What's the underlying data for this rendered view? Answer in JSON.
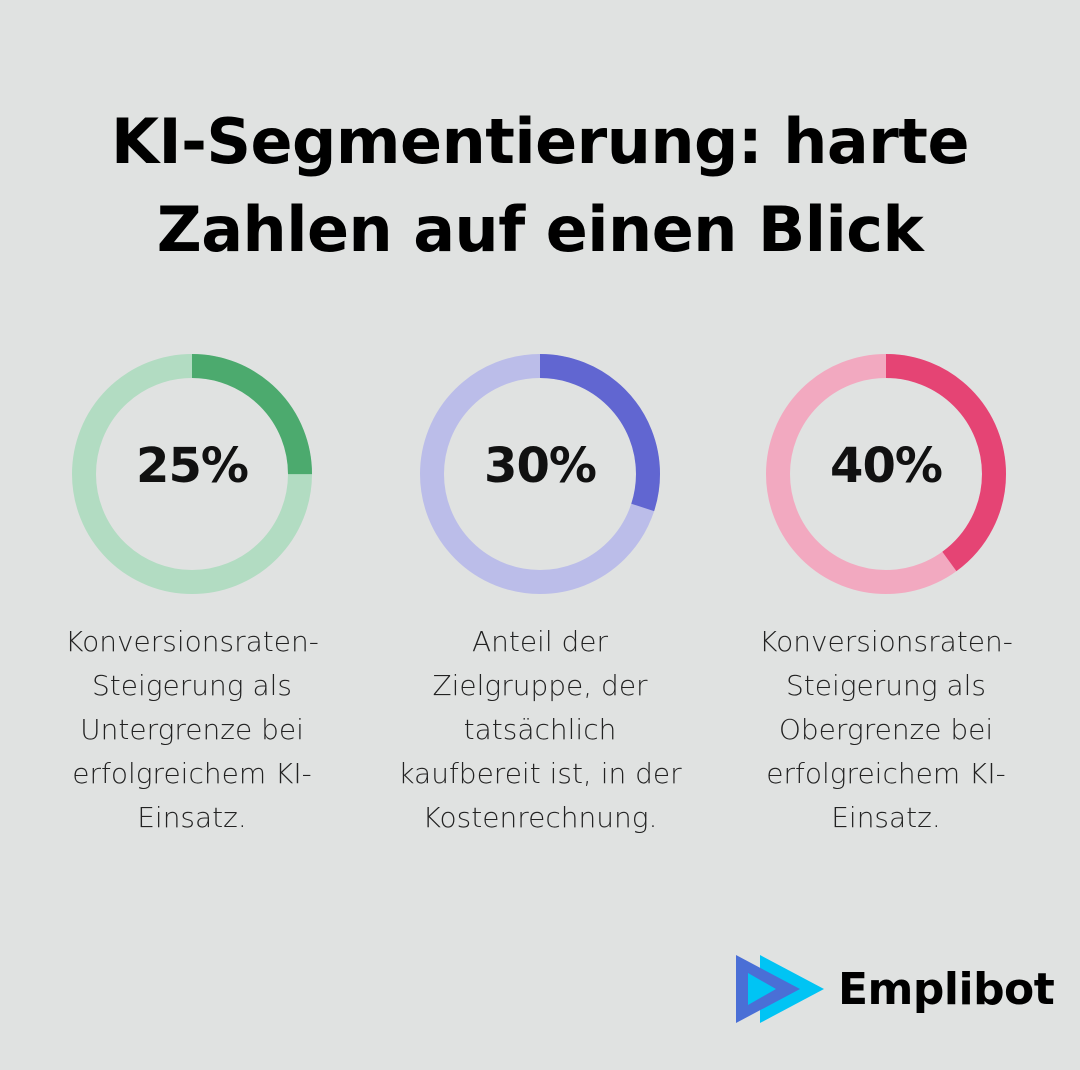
{
  "title_line1": "KI-Segmentierung: harte",
  "title_line2": "Zahlen auf einen Blick",
  "chart_data": [
    {
      "type": "pie",
      "variant": "donut",
      "value": 25,
      "label": "25%",
      "description": "Konversionsraten-Steigerung als Untergrenze bei erfolgreichem KI-Einsatz.",
      "color": "#4caa6e",
      "track_color": "#b2dcc2"
    },
    {
      "type": "pie",
      "variant": "donut",
      "value": 30,
      "label": "30%",
      "description": "Anteil der Zielgruppe, der tatsächlich kaufbereit ist, in der Kostenrechnung.",
      "color": "#6166d1",
      "track_color": "#bbbde9"
    },
    {
      "type": "pie",
      "variant": "donut",
      "value": 40,
      "label": "40%",
      "description": "Konversionsraten-Steigerung als Obergrenze bei erfolgreichem KI-Einsatz.",
      "color": "#e54474",
      "track_color": "#f2a9c0"
    }
  ],
  "logo": {
    "text": "Emplibot",
    "colors": [
      "#4a6fd6",
      "#00c4f4"
    ]
  }
}
